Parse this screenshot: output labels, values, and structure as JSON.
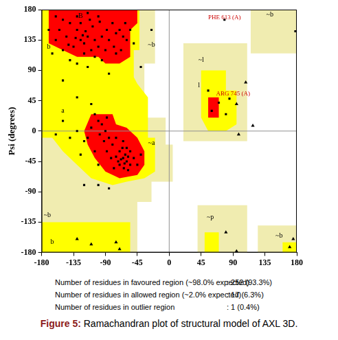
{
  "chart_data": {
    "type": "scatter",
    "y_label": "Psi (degrees)",
    "xlim": [
      -180,
      180
    ],
    "ylim": [
      -180,
      180
    ],
    "xticks": [
      -180,
      -135,
      -90,
      -45,
      0,
      45,
      90,
      135,
      180
    ],
    "yticks": [
      -180,
      -135,
      -90,
      -45,
      0,
      45,
      90,
      135,
      180
    ],
    "regions": [
      {
        "color": "#f0ecb0",
        "polygons": [
          [
            [
              -180,
              180
            ],
            [
              -20,
              180
            ],
            [
              -20,
              100
            ],
            [
              -35,
              100
            ],
            [
              -35,
              20
            ],
            [
              -5,
              20
            ],
            [
              -5,
              -20
            ],
            [
              5,
              -20
            ],
            [
              5,
              -75
            ],
            [
              -25,
              -75
            ],
            [
              -25,
              -105
            ],
            [
              -45,
              -105
            ],
            [
              -45,
              -180
            ],
            [
              -180,
              -180
            ]
          ],
          [
            [
              20,
              130
            ],
            [
              110,
              130
            ],
            [
              110,
              -15
            ],
            [
              20,
              -15
            ]
          ],
          [
            [
              115,
              180
            ],
            [
              180,
              180
            ],
            [
              180,
              115
            ],
            [
              115,
              115
            ]
          ],
          [
            [
              40,
              -110
            ],
            [
              110,
              -110
            ],
            [
              110,
              -180
            ],
            [
              40,
              -180
            ]
          ],
          [
            [
              125,
              -140
            ],
            [
              180,
              -140
            ],
            [
              180,
              -180
            ],
            [
              125,
              -180
            ]
          ]
        ]
      },
      {
        "color": "#ffff00",
        "polygons": [
          [
            [
              -180,
              180
            ],
            [
              -42,
              180
            ],
            [
              -42,
              120
            ],
            [
              -50,
              120
            ],
            [
              -50,
              80
            ],
            [
              -45,
              70
            ],
            [
              -30,
              50
            ],
            [
              -30,
              -10
            ],
            [
              -20,
              -10
            ],
            [
              -20,
              -60
            ],
            [
              -35,
              -70
            ],
            [
              -60,
              -75
            ],
            [
              -80,
              -80
            ],
            [
              -110,
              -70
            ],
            [
              -130,
              -50
            ],
            [
              -150,
              -30
            ],
            [
              -165,
              -10
            ],
            [
              -180,
              -10
            ]
          ],
          [
            [
              -180,
              -135
            ],
            [
              -55,
              -135
            ],
            [
              -55,
              -180
            ],
            [
              -180,
              -180
            ]
          ],
          [
            [
              45,
              90
            ],
            [
              80,
              90
            ],
            [
              80,
              60
            ],
            [
              95,
              60
            ],
            [
              95,
              10
            ],
            [
              80,
              0
            ],
            [
              55,
              0
            ],
            [
              45,
              20
            ]
          ],
          [
            [
              50,
              -150
            ],
            [
              70,
              -150
            ],
            [
              70,
              -180
            ],
            [
              50,
              -180
            ]
          ],
          [
            [
              160,
              -165
            ],
            [
              180,
              -165
            ],
            [
              180,
              -180
            ],
            [
              160,
              -180
            ]
          ]
        ]
      },
      {
        "color": "#ff0000",
        "polygons": [
          [
            [
              -170,
              180
            ],
            [
              -45,
              180
            ],
            [
              -45,
              160
            ],
            [
              -55,
              150
            ],
            [
              -55,
              110
            ],
            [
              -70,
              100
            ],
            [
              -90,
              100
            ],
            [
              -100,
              110
            ],
            [
              -130,
              110
            ],
            [
              -150,
              120
            ],
            [
              -170,
              130
            ]
          ],
          [
            [
              -110,
              25
            ],
            [
              -80,
              25
            ],
            [
              -75,
              10
            ],
            [
              -60,
              5
            ],
            [
              -45,
              -10
            ],
            [
              -35,
              -30
            ],
            [
              -35,
              -50
            ],
            [
              -45,
              -65
            ],
            [
              -70,
              -70
            ],
            [
              -90,
              -60
            ],
            [
              -105,
              -40
            ],
            [
              -115,
              -20
            ],
            [
              -120,
              0
            ]
          ],
          [
            [
              55,
              50
            ],
            [
              70,
              50
            ],
            [
              70,
              20
            ],
            [
              55,
              20
            ]
          ]
        ]
      }
    ],
    "series": [
      {
        "marker": "square",
        "color": "#000000",
        "values": [
          [
            -120,
            130
          ],
          [
            -115,
            140
          ],
          [
            -130,
            150
          ],
          [
            -125,
            160
          ],
          [
            -110,
            120
          ],
          [
            -100,
            125
          ],
          [
            -95,
            140
          ],
          [
            -140,
            160
          ],
          [
            -150,
            165
          ],
          [
            -135,
            125
          ],
          [
            -120,
            115
          ],
          [
            -105,
            110
          ],
          [
            -90,
            120
          ],
          [
            -85,
            135
          ],
          [
            -75,
            145
          ],
          [
            -70,
            150
          ],
          [
            -65,
            140
          ],
          [
            -80,
            160
          ],
          [
            -100,
            170
          ],
          [
            -115,
            175
          ],
          [
            -130,
            170
          ],
          [
            -145,
            140
          ],
          [
            -155,
            150
          ],
          [
            -160,
            170
          ],
          [
            -125,
            135
          ],
          [
            -118,
            148
          ],
          [
            -108,
            155
          ],
          [
            -98,
            162
          ],
          [
            -88,
            150
          ],
          [
            -78,
            125
          ],
          [
            -68,
            120
          ],
          [
            -60,
            135
          ],
          [
            -55,
            150
          ],
          [
            -140,
            105
          ],
          [
            -150,
            120
          ],
          [
            -130,
            100
          ],
          [
            -115,
            95
          ],
          [
            -95,
            105
          ],
          [
            -112,
            165
          ],
          [
            -122,
            142
          ],
          [
            -132,
            138
          ],
          [
            -142,
            128
          ],
          [
            -160,
            135
          ],
          [
            -170,
            150
          ],
          [
            -165,
            115
          ],
          [
            -62,
            160
          ],
          [
            -50,
            130
          ],
          [
            -85,
            85
          ],
          [
            -75,
            115
          ],
          [
            -105,
            135
          ],
          [
            -40,
            95
          ],
          [
            -150,
            75
          ],
          [
            -130,
            50
          ],
          [
            -25,
            150
          ],
          [
            -65,
            -40
          ],
          [
            -60,
            -45
          ],
          [
            -62,
            -35
          ],
          [
            -68,
            -42
          ],
          [
            -58,
            -38
          ],
          [
            -70,
            -30
          ],
          [
            -55,
            -50
          ],
          [
            -63,
            -48
          ],
          [
            -72,
            -45
          ],
          [
            -66,
            -25
          ],
          [
            -75,
            -38
          ],
          [
            -80,
            -20
          ],
          [
            -85,
            -10
          ],
          [
            -90,
            0
          ],
          [
            -95,
            10
          ],
          [
            -100,
            15
          ],
          [
            -105,
            25
          ],
          [
            -88,
            -30
          ],
          [
            -78,
            -55
          ],
          [
            -60,
            -25
          ],
          [
            -50,
            -40
          ],
          [
            -55,
            -30
          ],
          [
            -64,
            -55
          ],
          [
            -70,
            -50
          ],
          [
            -82,
            -40
          ],
          [
            -92,
            -15
          ],
          [
            -98,
            -5
          ],
          [
            -110,
            5
          ],
          [
            -115,
            -10
          ],
          [
            -75,
            -10
          ],
          [
            -65,
            -15
          ],
          [
            -58,
            -58
          ],
          [
            -45,
            -50
          ],
          [
            -40,
            -35
          ],
          [
            -120,
            -15
          ],
          [
            -130,
            0
          ],
          [
            -125,
            -35
          ],
          [
            -100,
            -50
          ],
          [
            -88,
            20
          ],
          [
            -105,
            -30
          ],
          [
            -140,
            -10
          ],
          [
            -160,
            -5
          ],
          [
            -150,
            15
          ],
          [
            -110,
            40
          ],
          [
            -100,
            -80
          ],
          [
            -120,
            -80
          ],
          [
            -85,
            -85
          ],
          [
            60,
            30
          ],
          [
            70,
            42
          ],
          [
            80,
            25
          ],
          [
            55,
            60
          ],
          [
            85,
            48
          ],
          [
            78,
            165
          ],
          [
            178,
            148
          ]
        ]
      },
      {
        "marker": "triangle",
        "color": "#000000",
        "values": [
          [
            108,
            72
          ],
          [
            118,
            8
          ],
          [
            98,
            -5
          ],
          [
            95,
            40
          ],
          [
            -110,
            -168
          ],
          [
            -75,
            -165
          ],
          [
            -130,
            -160
          ],
          [
            -70,
            -175
          ],
          [
            80,
            -150
          ],
          [
            95,
            -178
          ],
          [
            170,
            -172
          ],
          [
            175,
            -160
          ]
        ]
      }
    ],
    "annotations": [
      {
        "text": "B",
        "x": -125,
        "y": 170
      },
      {
        "text": "b",
        "x": -170,
        "y": 125
      },
      {
        "text": "~b",
        "x": -25,
        "y": 128
      },
      {
        "text": "a",
        "x": -150,
        "y": 30
      },
      {
        "text": "~a",
        "x": -25,
        "y": -18
      },
      {
        "text": "~b",
        "x": -172,
        "y": -125
      },
      {
        "text": "b",
        "x": -165,
        "y": -165
      },
      {
        "text": "~p",
        "x": 58,
        "y": -128
      },
      {
        "text": "~b",
        "x": 142,
        "y": 172
      },
      {
        "text": "~b",
        "x": 155,
        "y": -155
      },
      {
        "text": "~l",
        "x": 45,
        "y": 105
      },
      {
        "text": "l",
        "x": 42,
        "y": 68
      },
      {
        "text": "PHE 613 (A)",
        "x": 78,
        "y": 168,
        "color": "#cc0000"
      },
      {
        "text": "ARG 745 (A)",
        "x": 90,
        "y": 55,
        "color": "#cc0000"
      }
    ],
    "stats": [
      {
        "label": "Number of residues in favoured region (~98.0% expected)",
        "value": ": 252 (93.3%)"
      },
      {
        "label": "Number of residues in allowed region (~2.0% expected)",
        "value": ": 17 (6.3%)"
      },
      {
        "label": "Number of residues in outlier region",
        "value": ": 1 (0.4%)"
      }
    ],
    "caption": {
      "label": "Figure 5:",
      "text": "Ramachandran plot of structural model of AXL 3D."
    }
  }
}
